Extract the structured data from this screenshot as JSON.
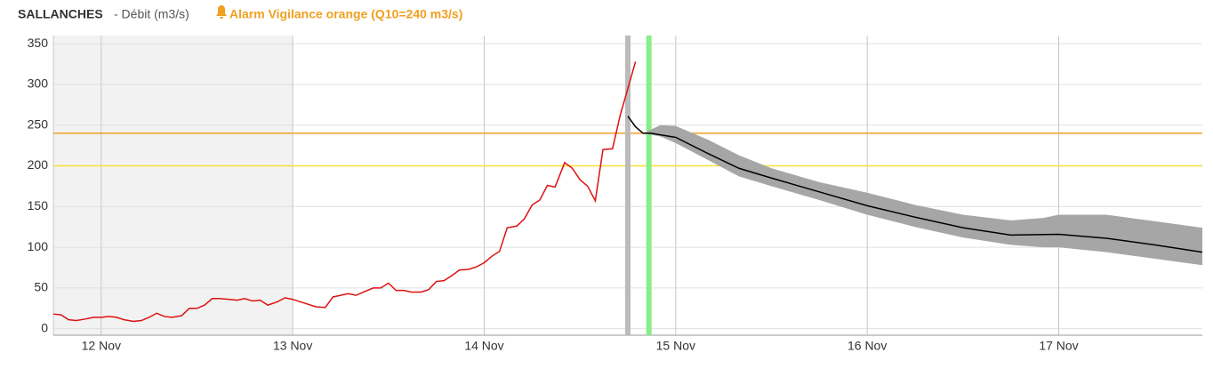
{
  "chart_data": {
    "type": "line",
    "title": "SALLANCHES",
    "subtitle": "- Débit (m3/s)",
    "alarm": "Alarm Vigilance orange (Q10=240 m3/s)",
    "xlim": [
      11.75,
      17.75
    ],
    "xticks": [
      {
        "value": 12,
        "label": "12 Nov"
      },
      {
        "value": 13,
        "label": "13 Nov"
      },
      {
        "value": 14,
        "label": "14 Nov"
      },
      {
        "value": 15,
        "label": "15 Nov"
      },
      {
        "value": 16,
        "label": "16 Nov"
      },
      {
        "value": 17,
        "label": "17 Nov"
      }
    ],
    "ylim": [
      -8,
      360
    ],
    "yticks": [
      0,
      50,
      100,
      150,
      200,
      250,
      300,
      350
    ],
    "grid": true,
    "shaded": {
      "x": [
        11.75,
        13.0
      ],
      "color": "#f2f2f2"
    },
    "thresholds": [
      {
        "value": 240,
        "color": "#f0a020"
      },
      {
        "value": 200,
        "color": "#f5e030"
      }
    ],
    "markers": [
      {
        "x": 14.75,
        "color": "#bbbbbb"
      },
      {
        "x": 14.86,
        "color": "#88ee88"
      }
    ],
    "band": {
      "color": "#a6a6a6",
      "x": [
        14.83,
        14.92,
        15.0,
        15.17,
        15.33,
        15.5,
        15.75,
        16.0,
        16.25,
        16.5,
        16.75,
        16.92,
        17.0,
        17.25,
        17.5,
        17.75
      ],
      "upper": [
        240,
        250,
        249,
        232,
        213,
        197,
        180,
        167,
        152,
        140,
        133,
        136,
        140,
        140,
        132,
        124
      ],
      "lower": [
        240,
        236,
        228,
        207,
        187,
        175,
        158,
        140,
        125,
        112,
        103,
        100,
        100,
        94,
        86,
        78
      ]
    },
    "series": [
      {
        "color": "#dd1111",
        "x": [
          11.75,
          11.79,
          11.83,
          11.87,
          11.92,
          11.96,
          12.0,
          12.04,
          12.08,
          12.12,
          12.17,
          12.21,
          12.25,
          12.29,
          12.33,
          12.37,
          12.42,
          12.46,
          12.5,
          12.54,
          12.58,
          12.62,
          12.67,
          12.71,
          12.75,
          12.79,
          12.83,
          12.87,
          12.92,
          12.96,
          13.0,
          13.04,
          13.08,
          13.12,
          13.17,
          13.21,
          13.25,
          13.29,
          13.33,
          13.37,
          13.42,
          13.46,
          13.5,
          13.54,
          13.58,
          13.62,
          13.67,
          13.71,
          13.75,
          13.79,
          13.83,
          13.87,
          13.92,
          13.96,
          14.0,
          14.04,
          14.08,
          14.12,
          14.17,
          14.21,
          14.25,
          14.29,
          14.33,
          14.37,
          14.42,
          14.46,
          14.5,
          14.54,
          14.58,
          14.62,
          14.67,
          14.71,
          14.75,
          14.79
        ],
        "values": [
          18,
          17,
          11,
          10,
          12,
          14,
          14,
          15,
          14,
          11,
          9,
          10,
          14,
          19,
          15,
          14,
          16,
          25,
          25,
          29,
          37,
          37,
          36,
          35,
          37,
          34,
          35,
          29,
          33,
          38,
          36,
          33,
          30,
          27,
          26,
          39,
          41,
          43,
          41,
          45,
          50,
          50,
          56,
          47,
          47,
          45,
          45,
          48,
          58,
          59,
          65,
          72,
          73,
          76,
          81,
          89,
          95,
          124,
          126,
          135,
          152,
          158,
          176,
          174,
          204,
          197,
          183,
          175,
          157,
          220,
          221,
          262,
          295,
          328
        ]
      },
      {
        "color": "#000000",
        "x": [
          14.75,
          14.79,
          14.83,
          14.87,
          15.0,
          15.17,
          15.33,
          15.5,
          15.75,
          16.0,
          16.25,
          16.5,
          16.75,
          17.0,
          17.25,
          17.5,
          17.75
        ],
        "values": [
          261,
          248,
          240,
          240,
          235,
          215,
          197,
          185,
          168,
          151,
          137,
          124,
          115,
          116,
          111,
          103,
          94
        ]
      }
    ]
  }
}
